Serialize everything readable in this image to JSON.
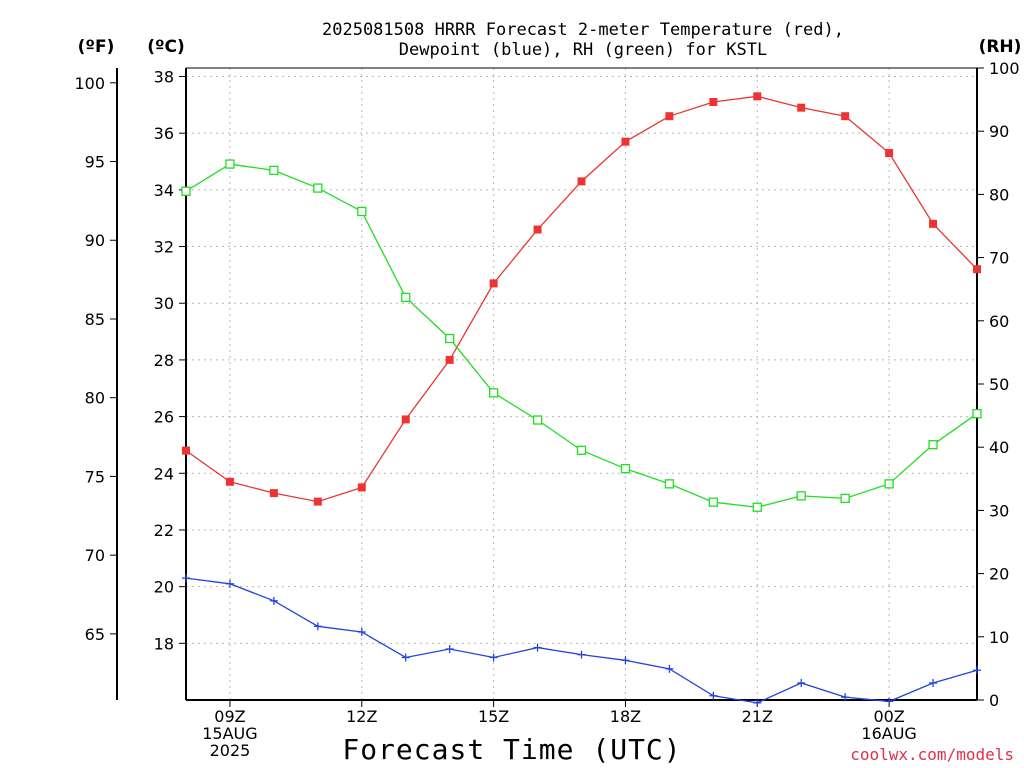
{
  "chart_data": {
    "type": "line",
    "title_line1": "2025081508 HRRR Forecast 2-meter Temperature (red),",
    "title_line2": "Dewpoint (blue), RH (green) for KSTL",
    "left_outer_axis": {
      "unit": "(ºF)",
      "ticks": [
        65,
        70,
        75,
        80,
        85,
        90,
        95,
        100
      ]
    },
    "left_inner_axis": {
      "unit": "(ºC)",
      "ticks": [
        18,
        20,
        22,
        24,
        26,
        28,
        30,
        32,
        34,
        36,
        38
      ],
      "ylim": [
        16,
        38.3
      ]
    },
    "right_axis": {
      "unit": "(RH)",
      "ticks": [
        0,
        10,
        20,
        30,
        40,
        50,
        60,
        70,
        80,
        90,
        100
      ],
      "ylim": [
        0,
        100
      ]
    },
    "xlabel": "Forecast Time (UTC)",
    "x_ticks": [
      {
        "hour": 9,
        "lines": [
          "09Z",
          "15AUG",
          "2025"
        ]
      },
      {
        "hour": 12,
        "lines": [
          "12Z"
        ]
      },
      {
        "hour": 15,
        "lines": [
          "15Z"
        ]
      },
      {
        "hour": 18,
        "lines": [
          "18Z"
        ]
      },
      {
        "hour": 21,
        "lines": [
          "21Z"
        ]
      },
      {
        "hour": 24,
        "lines": [
          "00Z",
          "16AUG"
        ]
      }
    ],
    "x_range_hours": [
      8,
      26
    ],
    "x": [
      8,
      9,
      10,
      11,
      12,
      13,
      14,
      15,
      16,
      17,
      18,
      19,
      20,
      21,
      22,
      23,
      24,
      25,
      26
    ],
    "grid": true,
    "series": [
      {
        "name": "Temperature",
        "color": "#ee3333",
        "marker": "filled-square",
        "axis": "celsius",
        "values": [
          24.8,
          23.7,
          23.3,
          23.0,
          23.5,
          25.9,
          28.0,
          30.7,
          32.6,
          34.3,
          35.7,
          36.6,
          37.1,
          37.3,
          36.9,
          36.6,
          35.3,
          32.8,
          31.2
        ]
      },
      {
        "name": "Dewpoint",
        "color": "#2244dd",
        "marker": "plus",
        "axis": "celsius",
        "values": [
          20.3,
          20.1,
          19.5,
          18.6,
          18.4,
          17.5,
          17.8,
          17.5,
          17.85,
          17.6,
          17.4,
          17.1,
          16.15,
          15.9,
          16.6,
          16.1,
          15.95,
          16.6,
          17.05
        ]
      },
      {
        "name": "RH",
        "color": "#22dd22",
        "marker": "open-square",
        "axis": "rh",
        "values": [
          80.5,
          84.8,
          83.8,
          81.0,
          77.3,
          63.7,
          57.2,
          48.6,
          44.3,
          39.5,
          36.6,
          34.2,
          31.3,
          30.5,
          32.3,
          31.9,
          34.2,
          40.4,
          45.3
        ]
      }
    ],
    "watermark": "coolwx.com/models"
  }
}
